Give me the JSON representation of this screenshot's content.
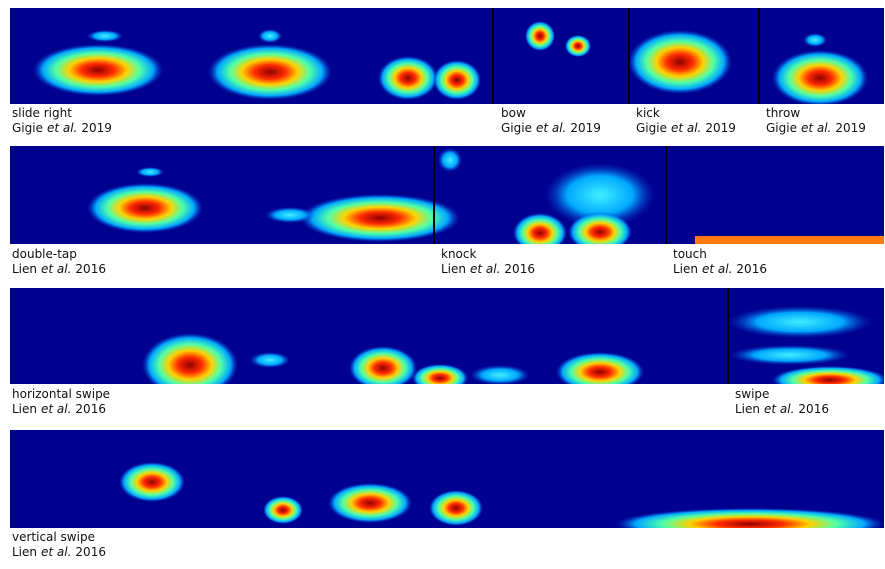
{
  "panels": [
    {
      "gesture": "slide right",
      "author": "Gigie",
      "etal": "et al.",
      "year": 2019
    },
    {
      "gesture": "bow",
      "author": "Gigie",
      "etal": "et al.",
      "year": 2019
    },
    {
      "gesture": "kick",
      "author": "Gigie",
      "etal": "et al.",
      "year": 2019
    },
    {
      "gesture": "throw",
      "author": "Gigie",
      "etal": "et al.",
      "year": 2019
    },
    {
      "gesture": "double-tap",
      "author": "Lien",
      "etal": "et al.",
      "year": 2016
    },
    {
      "gesture": "knock",
      "author": "Lien",
      "etal": "et al.",
      "year": 2016
    },
    {
      "gesture": "touch",
      "author": "Lien",
      "etal": "et al.",
      "year": 2016
    },
    {
      "gesture": "horizontal swipe",
      "author": "Lien",
      "etal": "et al.",
      "year": 2016
    },
    {
      "gesture": "swipe",
      "author": "Lien",
      "etal": "et al.",
      "year": 2016
    },
    {
      "gesture": "vertical swipe",
      "author": "Lien",
      "etal": "et al.",
      "year": 2016
    }
  ]
}
